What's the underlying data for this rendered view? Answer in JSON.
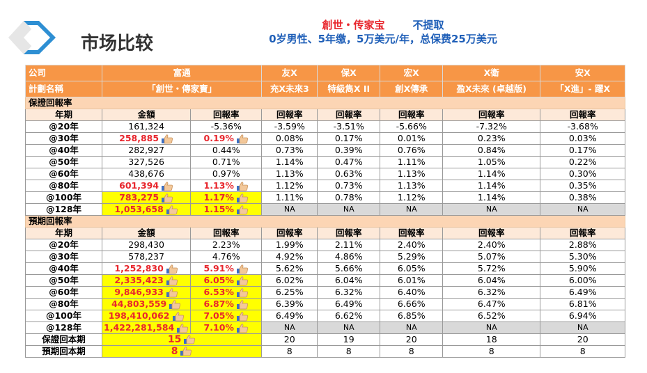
{
  "page": {
    "title": "市场比较",
    "subtitle_product": "創世・传家宝",
    "subtitle_option": "不提取",
    "subtitle_detail": "0岁男性、5年缴，5万美元/年，总保费25万美元"
  },
  "table": {
    "company_label": "公司",
    "plan_label": "計劃名稱",
    "companies": [
      "富通",
      "友X",
      "保X",
      "宏X",
      "X衛",
      "安X"
    ],
    "plans": [
      "「創世・傳家寶」",
      "充X未來3",
      "特級雋X II",
      "創X傳承",
      "盈X未來 (卓越版)",
      "「X進」- 躍X"
    ],
    "col_year": "年期",
    "col_amount": "金額",
    "col_return": "回報率",
    "guaranteed": {
      "label": "保證回報率",
      "rows": [
        {
          "year": "@20年",
          "amount": "161,324",
          "ret": "-5.36%",
          "others": [
            "-3.59%",
            "-3.51%",
            "-5.66%",
            "-7.32%",
            "-3.68%"
          ],
          "hl": false,
          "yel": false
        },
        {
          "year": "@30年",
          "amount": "258,885",
          "ret": "0.19%",
          "others": [
            "0.08%",
            "0.17%",
            "0.01%",
            "0.23%",
            "0.03%"
          ],
          "hl": true,
          "yel": false
        },
        {
          "year": "@40年",
          "amount": "282,927",
          "ret": "0.44%",
          "others": [
            "0.73%",
            "0.39%",
            "0.76%",
            "0.84%",
            "0.17%"
          ],
          "hl": false,
          "yel": false
        },
        {
          "year": "@50年",
          "amount": "327,526",
          "ret": "0.71%",
          "others": [
            "1.14%",
            "0.47%",
            "1.11%",
            "1.05%",
            "0.22%"
          ],
          "hl": false,
          "yel": false
        },
        {
          "year": "@60年",
          "amount": "438,676",
          "ret": "0.97%",
          "others": [
            "1.13%",
            "0.63%",
            "1.13%",
            "1.14%",
            "0.30%"
          ],
          "hl": false,
          "yel": false
        },
        {
          "year": "@80年",
          "amount": "601,394",
          "ret": "1.13%",
          "others": [
            "1.12%",
            "0.73%",
            "1.13%",
            "1.14%",
            "0.35%"
          ],
          "hl": true,
          "yel": false
        },
        {
          "year": "@100年",
          "amount": "783,275",
          "ret": "1.17%",
          "others": [
            "1.11%",
            "0.78%",
            "1.12%",
            "1.14%",
            "0.38%"
          ],
          "hl": true,
          "yel": true
        },
        {
          "year": "@128年",
          "amount": "1,053,658",
          "ret": "1.15%",
          "others": [
            "NA",
            "NA",
            "NA",
            "NA",
            "NA"
          ],
          "hl": true,
          "yel": true
        }
      ]
    },
    "expected": {
      "label": "預期回報率",
      "rows": [
        {
          "year": "@20年",
          "amount": "298,430",
          "ret": "2.23%",
          "others": [
            "1.99%",
            "2.11%",
            "2.40%",
            "2.40%",
            "2.88%"
          ],
          "hl": false,
          "yel": false
        },
        {
          "year": "@30年",
          "amount": "578,237",
          "ret": "4.76%",
          "others": [
            "4.92%",
            "4.86%",
            "5.29%",
            "5.07%",
            "5.30%"
          ],
          "hl": false,
          "yel": false
        },
        {
          "year": "@40年",
          "amount": "1,252,830",
          "ret": "5.91%",
          "others": [
            "5.62%",
            "5.66%",
            "6.05%",
            "5.72%",
            "5.90%"
          ],
          "hl": true,
          "yel": false
        },
        {
          "year": "@50年",
          "amount": "2,335,423",
          "ret": "6.05%",
          "others": [
            "6.02%",
            "6.04%",
            "6.01%",
            "6.04%",
            "6.00%"
          ],
          "hl": true,
          "yel": true
        },
        {
          "year": "@60年",
          "amount": "9,846,933",
          "ret": "6.53%",
          "others": [
            "6.25%",
            "6.32%",
            "6.40%",
            "6.32%",
            "6.49%"
          ],
          "hl": true,
          "yel": true
        },
        {
          "year": "@80年",
          "amount": "44,803,559",
          "ret": "6.87%",
          "others": [
            "6.39%",
            "6.49%",
            "6.66%",
            "6.47%",
            "6.81%"
          ],
          "hl": true,
          "yel": true
        },
        {
          "year": "@100年",
          "amount": "198,410,062",
          "ret": "7.05%",
          "others": [
            "6.49%",
            "6.62%",
            "6.85%",
            "6.52%",
            "6.94%"
          ],
          "hl": true,
          "yel": true
        },
        {
          "year": "@128年",
          "amount": "1,422,281,584",
          "ret": "7.10%",
          "others": [
            "NA",
            "NA",
            "NA",
            "NA",
            "NA"
          ],
          "hl": true,
          "yel": true
        }
      ]
    },
    "breakeven": [
      {
        "label": "保證回本期",
        "fortis": "15",
        "others": [
          "20",
          "19",
          "20",
          "18",
          "20"
        ]
      },
      {
        "label": "預期回本期",
        "fortis": "8",
        "others": [
          "8",
          "8",
          "8",
          "8",
          "8"
        ]
      }
    ]
  }
}
